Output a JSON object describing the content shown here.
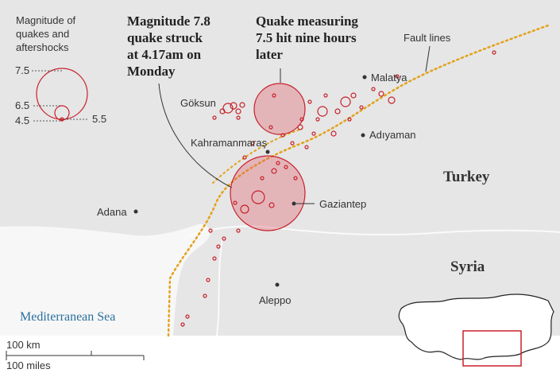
{
  "legend": {
    "title_lines": [
      "Magnitude of",
      "quakes and",
      "aftershocks"
    ],
    "labels": [
      "7.5",
      "6.5",
      "4.5",
      "5.5"
    ]
  },
  "annotations": {
    "first_quake_lines": [
      "Magnitude 7.8",
      "quake struck",
      "at 4.17am on",
      "Monday"
    ],
    "second_quake_lines": [
      "Quake measuring",
      "7.5 hit nine hours",
      "later"
    ],
    "fault_lines": "Fault lines"
  },
  "cities": [
    "Göksun",
    "Kahramanmaraş",
    "Malatya",
    "Adıyaman",
    "Gaziantep",
    "Adana",
    "Aleppo"
  ],
  "countries": [
    "Turkey",
    "Syria"
  ],
  "sea": "Mediterranean Sea",
  "scale": [
    "100 km",
    "100 miles"
  ]
}
